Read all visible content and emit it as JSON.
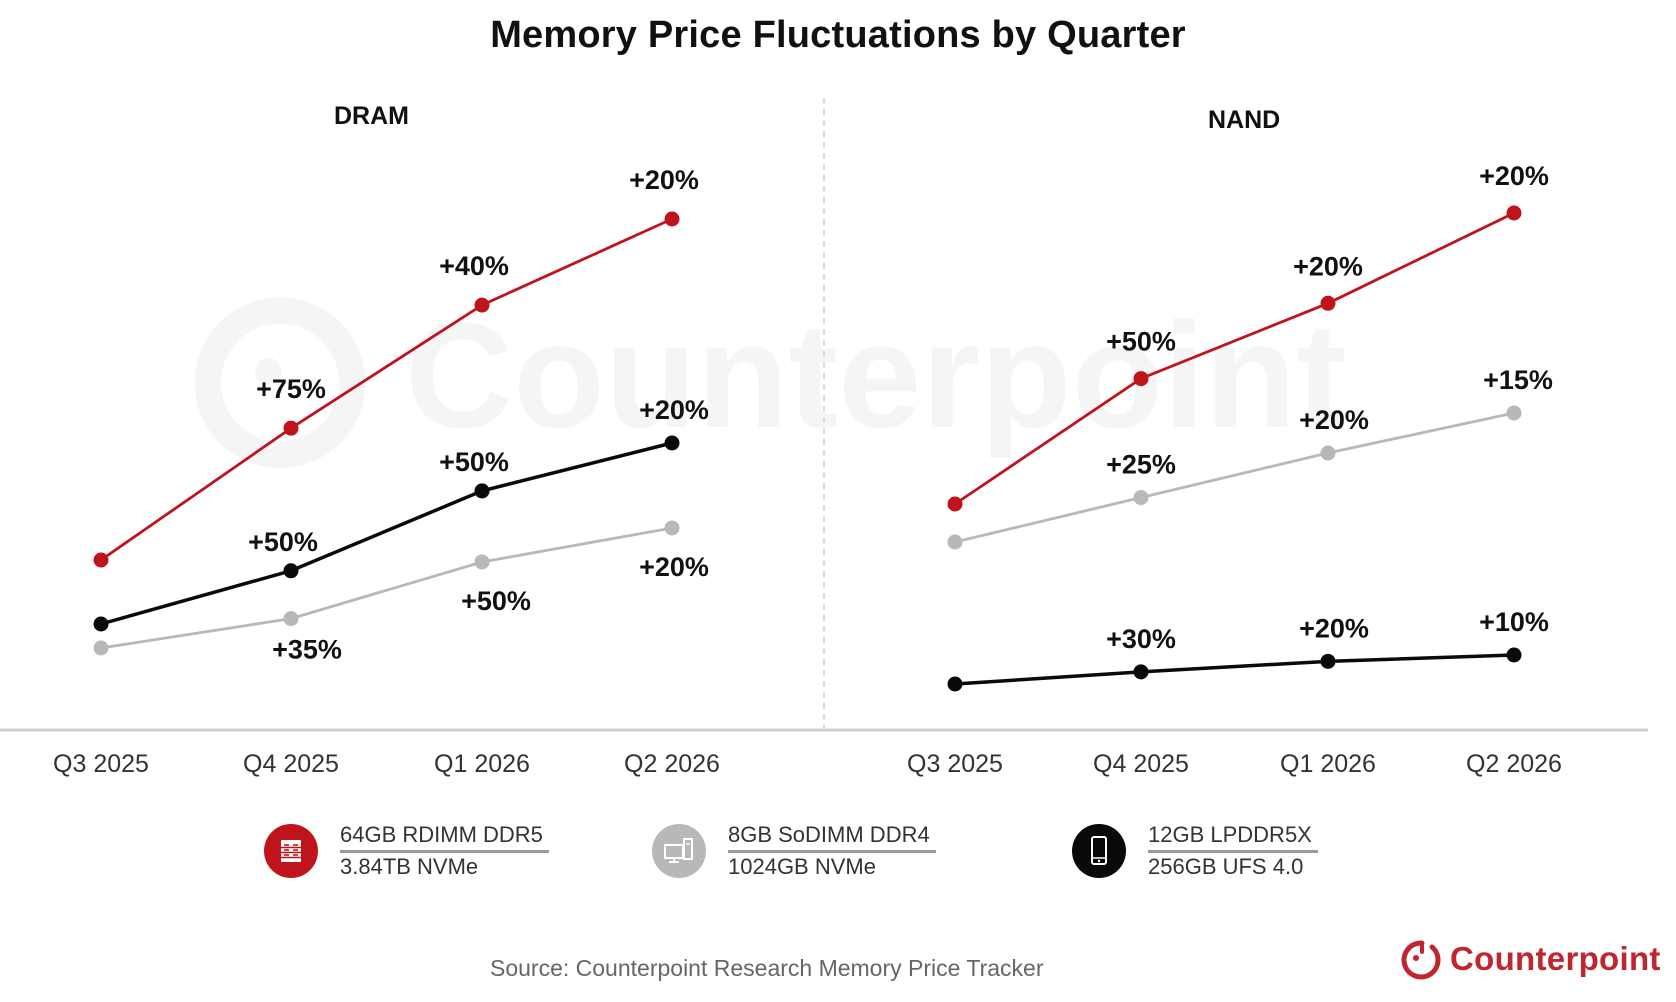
{
  "title": "Memory Price Fluctuations by Quarter",
  "colors": {
    "red": "#c0141c",
    "black": "#0a0a0a",
    "gray": "#b8b8b8",
    "brand": "#c0262d"
  },
  "chart_data": [
    {
      "type": "line",
      "title": "DRAM",
      "xlabel": "",
      "ylabel": "",
      "grid": false,
      "categories": [
        "Q3 2025",
        "Q4 2025",
        "Q1 2026",
        "Q2 2026"
      ],
      "value_note": "Relative price index, Q3 2025 = 100, compounded from quarterly % changes",
      "series": [
        {
          "name": "64GB RDIMM DDR5",
          "color": "red",
          "values": [
            100,
            175,
            245,
            294
          ],
          "labels": [
            "",
            "+75%",
            "+40%",
            "+20%"
          ]
        },
        {
          "name": "12GB LPDDR5X",
          "color": "black",
          "values": [
            100,
            150,
            225,
            270
          ],
          "labels": [
            "",
            "+50%",
            "+50%",
            "+20%"
          ]
        },
        {
          "name": "8GB SoDIMM DDR4",
          "color": "gray",
          "values": [
            100,
            135,
            202.5,
            243
          ],
          "labels": [
            "",
            "+35%",
            "+50%",
            "+20%"
          ]
        }
      ]
    },
    {
      "type": "line",
      "title": "NAND",
      "xlabel": "",
      "ylabel": "",
      "grid": false,
      "categories": [
        "Q3 2025",
        "Q4 2025",
        "Q1 2026",
        "Q2 2026"
      ],
      "value_note": "Relative price index, Q3 2025 = 100, compounded from quarterly % changes",
      "series": [
        {
          "name": "3.84TB NVMe",
          "color": "red",
          "values": [
            100,
            150,
            180,
            216
          ],
          "labels": [
            "",
            "+50%",
            "+20%",
            "+20%"
          ]
        },
        {
          "name": "1024GB NVMe",
          "color": "gray",
          "values": [
            100,
            125,
            150,
            172.5
          ],
          "labels": [
            "",
            "+25%",
            "+20%",
            "+15%"
          ]
        },
        {
          "name": "256GB UFS 4.0",
          "color": "black",
          "values": [
            100,
            130,
            156,
            171.6
          ],
          "labels": [
            "",
            "+30%",
            "+20%",
            "+10%"
          ]
        }
      ]
    }
  ],
  "legend": [
    {
      "icon": "server-icon",
      "color": "red",
      "line1": "64GB RDIMM DDR5",
      "line2": "3.84TB NVMe"
    },
    {
      "icon": "desktop-icon",
      "color": "gray",
      "line1": "8GB SoDIMM DDR4",
      "line2": "1024GB NVMe"
    },
    {
      "icon": "smartphone-icon",
      "color": "black",
      "line1": "12GB LPDDR5X",
      "line2": "256GB UFS 4.0"
    }
  ],
  "source": "Source: Counterpoint Research Memory Price Tracker",
  "brand": "Counterpoint",
  "watermark": "Counterpoint"
}
